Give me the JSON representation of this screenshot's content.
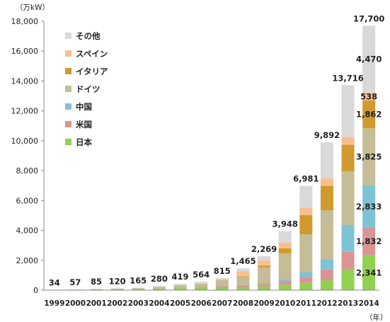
{
  "chart_data": {
    "type": "bar",
    "stacked": true,
    "y_unit_label": "（万kW）",
    "x_unit_label": "（年）",
    "ylim": [
      0,
      18000
    ],
    "yticks": [
      0,
      2000,
      4000,
      6000,
      8000,
      10000,
      12000,
      14000,
      16000,
      18000
    ],
    "ytick_labels": [
      "0",
      "2,000",
      "4,000",
      "6,000",
      "8,000",
      "10,000",
      "12,000",
      "14,000",
      "16,000",
      "18,000"
    ],
    "categories": [
      "1999",
      "2000",
      "2001",
      "2002",
      "2003",
      "2004",
      "2005",
      "2006",
      "2007",
      "2008",
      "2009",
      "2010",
      "2011",
      "2012",
      "2013",
      "2014"
    ],
    "series": [
      {
        "name": "日本",
        "color": "#92d050",
        "values": [
          20,
          30,
          45,
          60,
          85,
          110,
          140,
          170,
          190,
          215,
          260,
          360,
          490,
          660,
          1370,
          2341
        ]
      },
      {
        "name": "米国",
        "color": "#d99594",
        "values": [
          2,
          3,
          4,
          6,
          9,
          15,
          25,
          45,
          75,
          115,
          160,
          260,
          390,
          720,
          1200,
          1832
        ]
      },
      {
        "name": "中国",
        "color": "#7dc3d6",
        "values": [
          0,
          0,
          0,
          0,
          0,
          0,
          5,
          10,
          12,
          15,
          30,
          90,
          330,
          700,
          1790,
          2833
        ]
      },
      {
        "name": "ドイツ",
        "color": "#c4bd97",
        "values": [
          6,
          12,
          18,
          28,
          40,
          90,
          160,
          205,
          390,
          540,
          1080,
          1740,
          2530,
          3260,
          3590,
          3825
        ]
      },
      {
        "name": "イタリア",
        "color": "#d09a2e",
        "values": [
          0,
          0,
          0,
          0,
          0,
          3,
          5,
          8,
          10,
          45,
          120,
          350,
          1290,
          1640,
          1780,
          1862
        ]
      },
      {
        "name": "スペイン",
        "color": "#f8bf8e",
        "values": [
          0,
          0,
          1,
          1,
          1,
          3,
          5,
          15,
          60,
          340,
          350,
          390,
          490,
          500,
          510,
          538
        ]
      },
      {
        "name": "その他",
        "color": "#d9d9d9",
        "values": [
          6,
          12,
          17,
          25,
          30,
          59,
          79,
          111,
          78,
          195,
          269,
          758,
          1461,
          2412,
          3476,
          4470
        ]
      }
    ],
    "totals": [
      "34",
      "57",
      "85",
      "120",
      "165",
      "280",
      "419",
      "564",
      "815",
      "1,465",
      "2,269",
      "3,948",
      "6,981",
      "9,892",
      "13,716",
      "17,700"
    ],
    "segment_labels_2014": {
      "日本": "2,341",
      "米国": "1,832",
      "中国": "2,833",
      "ドイツ": "3,825",
      "イタリア": "1,862",
      "スペイン": "538",
      "その他": "4,470"
    },
    "legend": {
      "placement": "top-left",
      "order": [
        "その他",
        "スペイン",
        "イタリア",
        "ドイツ",
        "中国",
        "米国",
        "日本"
      ]
    },
    "grid": false
  }
}
